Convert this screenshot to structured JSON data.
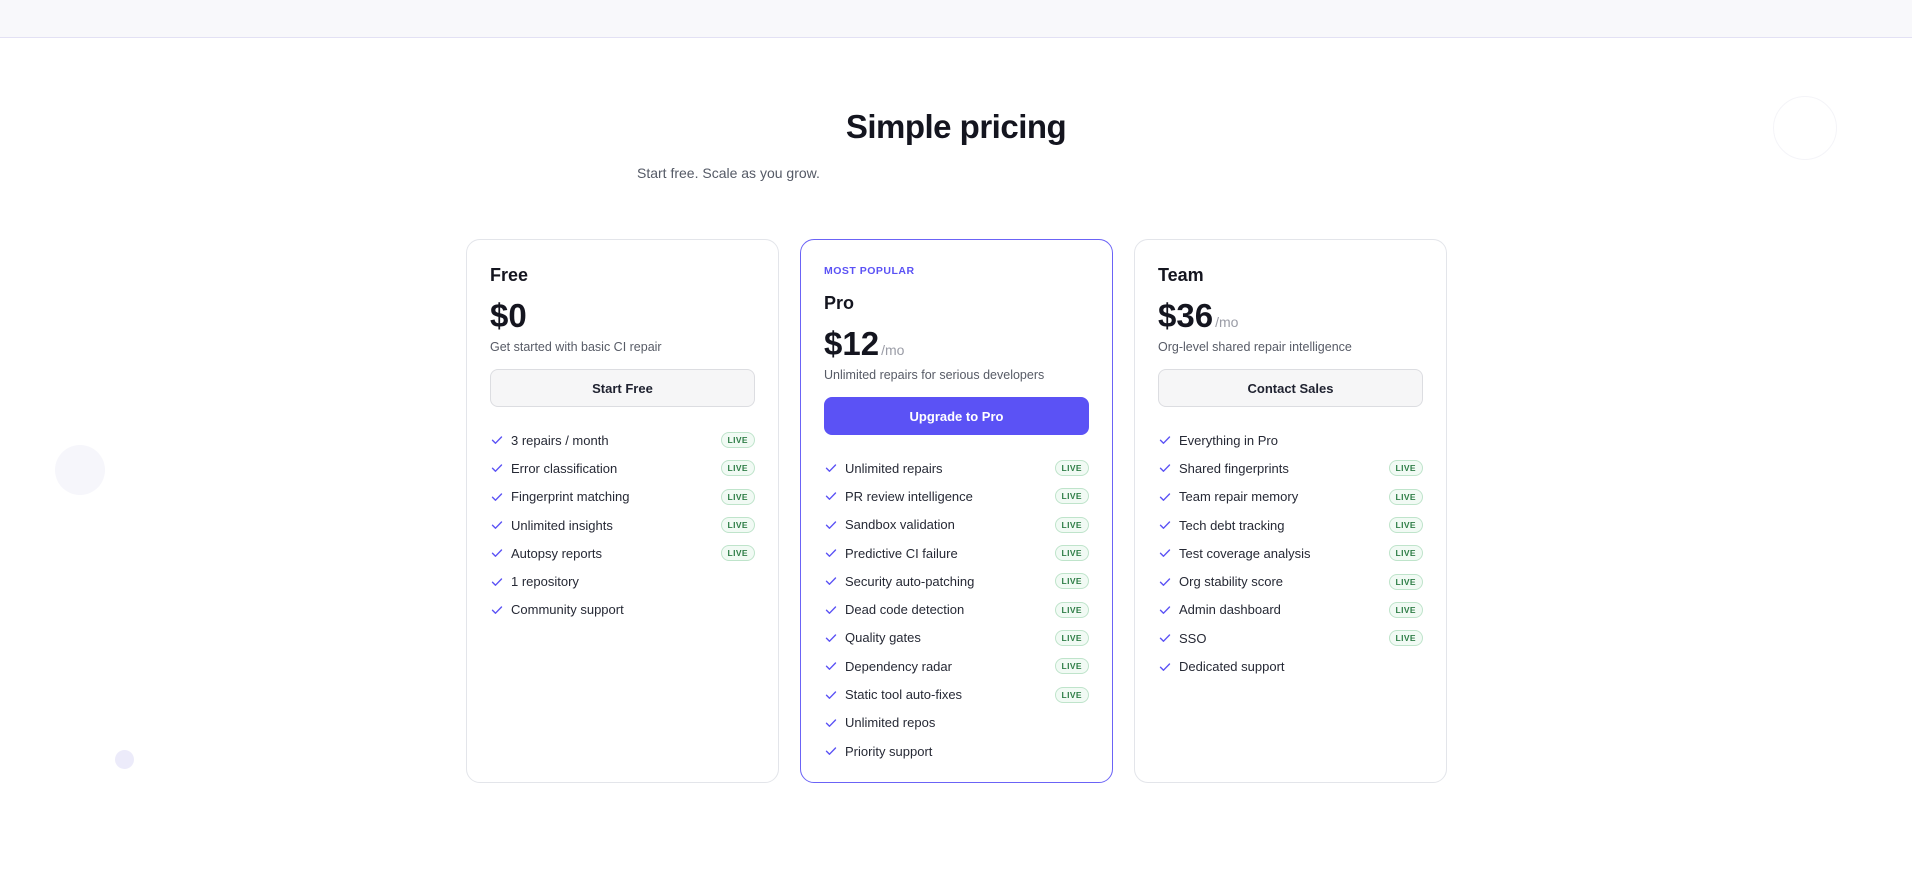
{
  "header": {
    "title": "Simple pricing",
    "subtitle": "Start free. Scale as you grow."
  },
  "plans": [
    {
      "name": "Free",
      "price": "$0",
      "description": "Get started with basic CI repair",
      "button": "Start Free",
      "features": [
        {
          "text": "3 repairs / month",
          "badge": "LIVE"
        },
        {
          "text": "Error classification",
          "badge": "LIVE"
        },
        {
          "text": "Fingerprint matching",
          "badge": "LIVE"
        },
        {
          "text": "Unlimited insights",
          "badge": "LIVE"
        },
        {
          "text": "Autopsy reports",
          "badge": "LIVE"
        },
        {
          "text": "1 repository"
        },
        {
          "text": "Community support"
        }
      ]
    },
    {
      "tag": "MOST POPULAR",
      "name": "Pro",
      "price": "$12",
      "period": "/mo",
      "description": "Unlimited repairs for serious developers",
      "button": "Upgrade to Pro",
      "features": [
        {
          "text": "Unlimited repairs",
          "badge": "LIVE"
        },
        {
          "text": "PR review intelligence",
          "badge": "LIVE"
        },
        {
          "text": "Sandbox validation",
          "badge": "LIVE"
        },
        {
          "text": "Predictive CI failure",
          "badge": "LIVE"
        },
        {
          "text": "Security auto-patching",
          "badge": "LIVE"
        },
        {
          "text": "Dead code detection",
          "badge": "LIVE"
        },
        {
          "text": "Quality gates",
          "badge": "LIVE"
        },
        {
          "text": "Dependency radar",
          "badge": "LIVE"
        },
        {
          "text": "Static tool auto-fixes",
          "badge": "LIVE"
        },
        {
          "text": "Unlimited repos"
        },
        {
          "text": "Priority support"
        }
      ]
    },
    {
      "name": "Team",
      "price": "$36",
      "period": "/mo",
      "description": "Org-level shared repair intelligence",
      "button": "Contact Sales",
      "features": [
        {
          "text": "Everything in Pro"
        },
        {
          "text": "Shared fingerprints",
          "badge": "LIVE"
        },
        {
          "text": "Team repair memory",
          "badge": "LIVE"
        },
        {
          "text": "Tech debt tracking",
          "badge": "LIVE"
        },
        {
          "text": "Test coverage analysis",
          "badge": "LIVE"
        },
        {
          "text": "Org stability score",
          "badge": "LIVE"
        },
        {
          "text": "Admin dashboard",
          "badge": "LIVE"
        },
        {
          "text": "SSO",
          "badge": "LIVE"
        },
        {
          "text": "Dedicated support"
        }
      ]
    }
  ]
}
